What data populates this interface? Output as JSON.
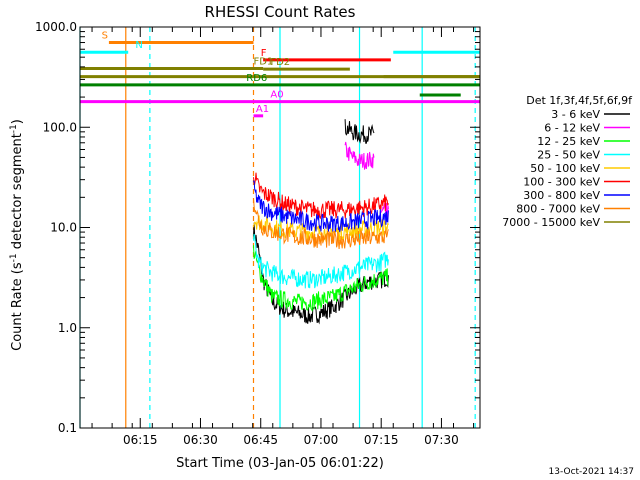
{
  "chart_data": {
    "type": "line",
    "title": "RHESSI Count Rates",
    "xlabel": "Start Time (03-Jan-05 06:01:22)",
    "ylabel": "Count Rate (s⁻¹ detector segment⁻¹)",
    "yscale": "log",
    "ylim": [
      0.1,
      1000
    ],
    "xlim_minutes": [
      6.0,
      7.66
    ],
    "xticks": [
      {
        "label": "06:15",
        "t": 6.25
      },
      {
        "label": "06:30",
        "t": 6.5
      },
      {
        "label": "06:45",
        "t": 6.75
      },
      {
        "label": "07:00",
        "t": 7.0
      },
      {
        "label": "07:15",
        "t": 7.25
      },
      {
        "label": "07:30",
        "t": 7.5
      }
    ],
    "yticks": [
      {
        "label": "0.1",
        "v": 0.1
      },
      {
        "label": "1.0",
        "v": 1.0
      },
      {
        "label": "10.0",
        "v": 10.0
      },
      {
        "label": "100.0",
        "v": 100.0
      },
      {
        "label": "1000.0",
        "v": 1000.0
      }
    ],
    "legend_title": "Det 1f,3f,4f,5f,6f,9f",
    "legend_position": "right",
    "series": [
      {
        "name": "3 - 6 keV",
        "color": "#000000",
        "points": [
          [
            6.72,
            10
          ],
          [
            6.74,
            6
          ],
          [
            6.76,
            3
          ],
          [
            6.8,
            1.8
          ],
          [
            6.85,
            1.5
          ],
          [
            6.9,
            1.4
          ],
          [
            6.95,
            1.3
          ],
          [
            7.0,
            1.4
          ],
          [
            7.05,
            1.6
          ],
          [
            7.1,
            2.0
          ],
          [
            7.15,
            2.5
          ],
          [
            7.2,
            2.9
          ],
          [
            7.25,
            3.0
          ],
          [
            7.28,
            3.2
          ]
        ],
        "high": [
          [
            7.1,
            100
          ],
          [
            7.13,
            90
          ],
          [
            7.16,
            85
          ],
          [
            7.2,
            85
          ],
          [
            7.22,
            85
          ]
        ]
      },
      {
        "name": "6 - 12 keV",
        "color": "#ff00ff",
        "points": [
          [
            7.25,
            15
          ],
          [
            7.28,
            14
          ]
        ],
        "high": [
          [
            7.1,
            60
          ],
          [
            7.13,
            50
          ],
          [
            7.16,
            46
          ],
          [
            7.2,
            47
          ],
          [
            7.22,
            48
          ]
        ]
      },
      {
        "name": "12 - 25 keV",
        "color": "#00ff00",
        "points": [
          [
            6.72,
            6
          ],
          [
            6.74,
            4
          ],
          [
            6.76,
            3
          ],
          [
            6.8,
            2.0
          ],
          [
            6.85,
            1.9
          ],
          [
            6.9,
            1.8
          ],
          [
            6.95,
            1.8
          ],
          [
            7.0,
            1.9
          ],
          [
            7.05,
            2.0
          ],
          [
            7.1,
            2.3
          ],
          [
            7.15,
            2.6
          ],
          [
            7.2,
            2.9
          ],
          [
            7.25,
            3.1
          ],
          [
            7.28,
            3.2
          ]
        ]
      },
      {
        "name": "25 - 50 keV",
        "color": "#00ffff",
        "points": [
          [
            6.72,
            8
          ],
          [
            6.74,
            4.5
          ],
          [
            6.76,
            4
          ],
          [
            6.8,
            3.5
          ],
          [
            6.85,
            3.2
          ],
          [
            6.9,
            3.1
          ],
          [
            6.95,
            3.0
          ],
          [
            7.0,
            3.1
          ],
          [
            7.05,
            3.3
          ],
          [
            7.1,
            3.6
          ],
          [
            7.15,
            3.9
          ],
          [
            7.2,
            4.2
          ],
          [
            7.25,
            4.5
          ],
          [
            7.28,
            5.0
          ]
        ]
      },
      {
        "name": "50 - 100 keV",
        "color": "#ffcc00",
        "points": [
          [
            6.72,
            12
          ],
          [
            6.76,
            11
          ],
          [
            6.8,
            10
          ],
          [
            6.85,
            9.5
          ],
          [
            6.9,
            9.2
          ],
          [
            6.95,
            9.0
          ],
          [
            7.0,
            9.0
          ],
          [
            7.05,
            9.0
          ],
          [
            7.1,
            9.2
          ],
          [
            7.15,
            9.5
          ],
          [
            7.2,
            9.8
          ],
          [
            7.25,
            10
          ],
          [
            7.28,
            10
          ]
        ]
      },
      {
        "name": "100 - 300 keV",
        "color": "#ff0000",
        "points": [
          [
            6.72,
            35
          ],
          [
            6.74,
            25
          ],
          [
            6.76,
            22
          ],
          [
            6.8,
            20
          ],
          [
            6.85,
            17
          ],
          [
            6.9,
            16
          ],
          [
            6.95,
            15
          ],
          [
            7.0,
            15
          ],
          [
            7.05,
            15
          ],
          [
            7.1,
            15
          ],
          [
            7.15,
            15.5
          ],
          [
            7.2,
            16
          ],
          [
            7.25,
            17
          ],
          [
            7.28,
            18
          ]
        ]
      },
      {
        "name": "300 - 800 keV",
        "color": "#0000ff",
        "points": [
          [
            6.72,
            25
          ],
          [
            6.74,
            18
          ],
          [
            6.76,
            16
          ],
          [
            6.8,
            14
          ],
          [
            6.85,
            13
          ],
          [
            6.9,
            12
          ],
          [
            6.95,
            11.5
          ],
          [
            7.0,
            11
          ],
          [
            7.05,
            11
          ],
          [
            7.1,
            11
          ],
          [
            7.15,
            11.5
          ],
          [
            7.2,
            12
          ],
          [
            7.25,
            12.5
          ],
          [
            7.28,
            13
          ]
        ]
      },
      {
        "name": "800 - 7000 keV",
        "color": "#ff8000",
        "points": [
          [
            6.72,
            20
          ],
          [
            6.74,
            12
          ],
          [
            6.76,
            10
          ],
          [
            6.8,
            9
          ],
          [
            6.85,
            8.5
          ],
          [
            6.9,
            8.0
          ],
          [
            6.95,
            7.8
          ],
          [
            7.0,
            7.6
          ],
          [
            7.05,
            7.5
          ],
          [
            7.1,
            7.5
          ],
          [
            7.15,
            7.6
          ],
          [
            7.2,
            7.8
          ],
          [
            7.25,
            8.0
          ],
          [
            7.28,
            8.0
          ]
        ]
      },
      {
        "name": "7000 - 15000 keV",
        "color": "#808000",
        "points": []
      }
    ],
    "flag_bars": [
      {
        "label": "S",
        "color": "#ff8000",
        "t0": 6.12,
        "t1": 6.72,
        "v": 700,
        "label_t": 6.09
      },
      {
        "label": "N",
        "color": "#00ffff",
        "t0": 6.0,
        "t1": 6.2,
        "v": 560,
        "label_t": 6.23
      },
      {
        "label": "",
        "color": "#00ffff",
        "t0": 7.3,
        "t1": 7.66,
        "v": 560,
        "label_t": null
      },
      {
        "label": "F",
        "color": "#ff0000",
        "t0": 6.76,
        "t1": 7.29,
        "v": 470,
        "label_t": 6.75
      },
      {
        "label": "FD1",
        "color": "#808000",
        "t0": 6.0,
        "t1": 6.76,
        "v": 385,
        "label_t": 6.72
      },
      {
        "label": "FD2",
        "color": "#808000",
        "t0": 6.76,
        "t1": 7.12,
        "v": 380,
        "label_t": 6.79
      },
      {
        "label": "",
        "color": "#808000",
        "t0": 7.26,
        "t1": 7.66,
        "v": 320,
        "label_t": null
      },
      {
        "label": "",
        "color": "#808000",
        "t0": 6.0,
        "t1": 7.66,
        "v": 320,
        "label_t": null
      },
      {
        "label": "RD6",
        "color": "#008000",
        "t0": 6.0,
        "t1": 7.66,
        "v": 265,
        "label_t": 6.69
      },
      {
        "label": "",
        "color": "#008000",
        "t0": 7.41,
        "t1": 7.58,
        "v": 210,
        "label_t": null
      },
      {
        "label": "A0",
        "color": "#ff00ff",
        "t0": 6.0,
        "t1": 7.66,
        "v": 180,
        "label_t": 6.79
      },
      {
        "label": "A1",
        "color": "#ff00ff",
        "t0": 6.72,
        "t1": 6.76,
        "v": 130,
        "label_t": 6.73
      }
    ],
    "vertical_lines": [
      {
        "t": 6.0,
        "color": "#00ffff",
        "style": "solid"
      },
      {
        "t": 6.19,
        "color": "#ff8000",
        "style": "solid"
      },
      {
        "t": 6.29,
        "color": "#00ffff",
        "style": "dashed"
      },
      {
        "t": 6.72,
        "color": "#ff8000",
        "style": "dashed"
      },
      {
        "t": 6.83,
        "color": "#00ffff",
        "style": "solid"
      },
      {
        "t": 7.16,
        "color": "#00ffff",
        "style": "solid"
      },
      {
        "t": 7.42,
        "color": "#00ffff",
        "style": "solid"
      },
      {
        "t": 7.64,
        "color": "#00ffff",
        "style": "dashed"
      }
    ]
  },
  "footer_date": "13-Oct-2021 14:37"
}
